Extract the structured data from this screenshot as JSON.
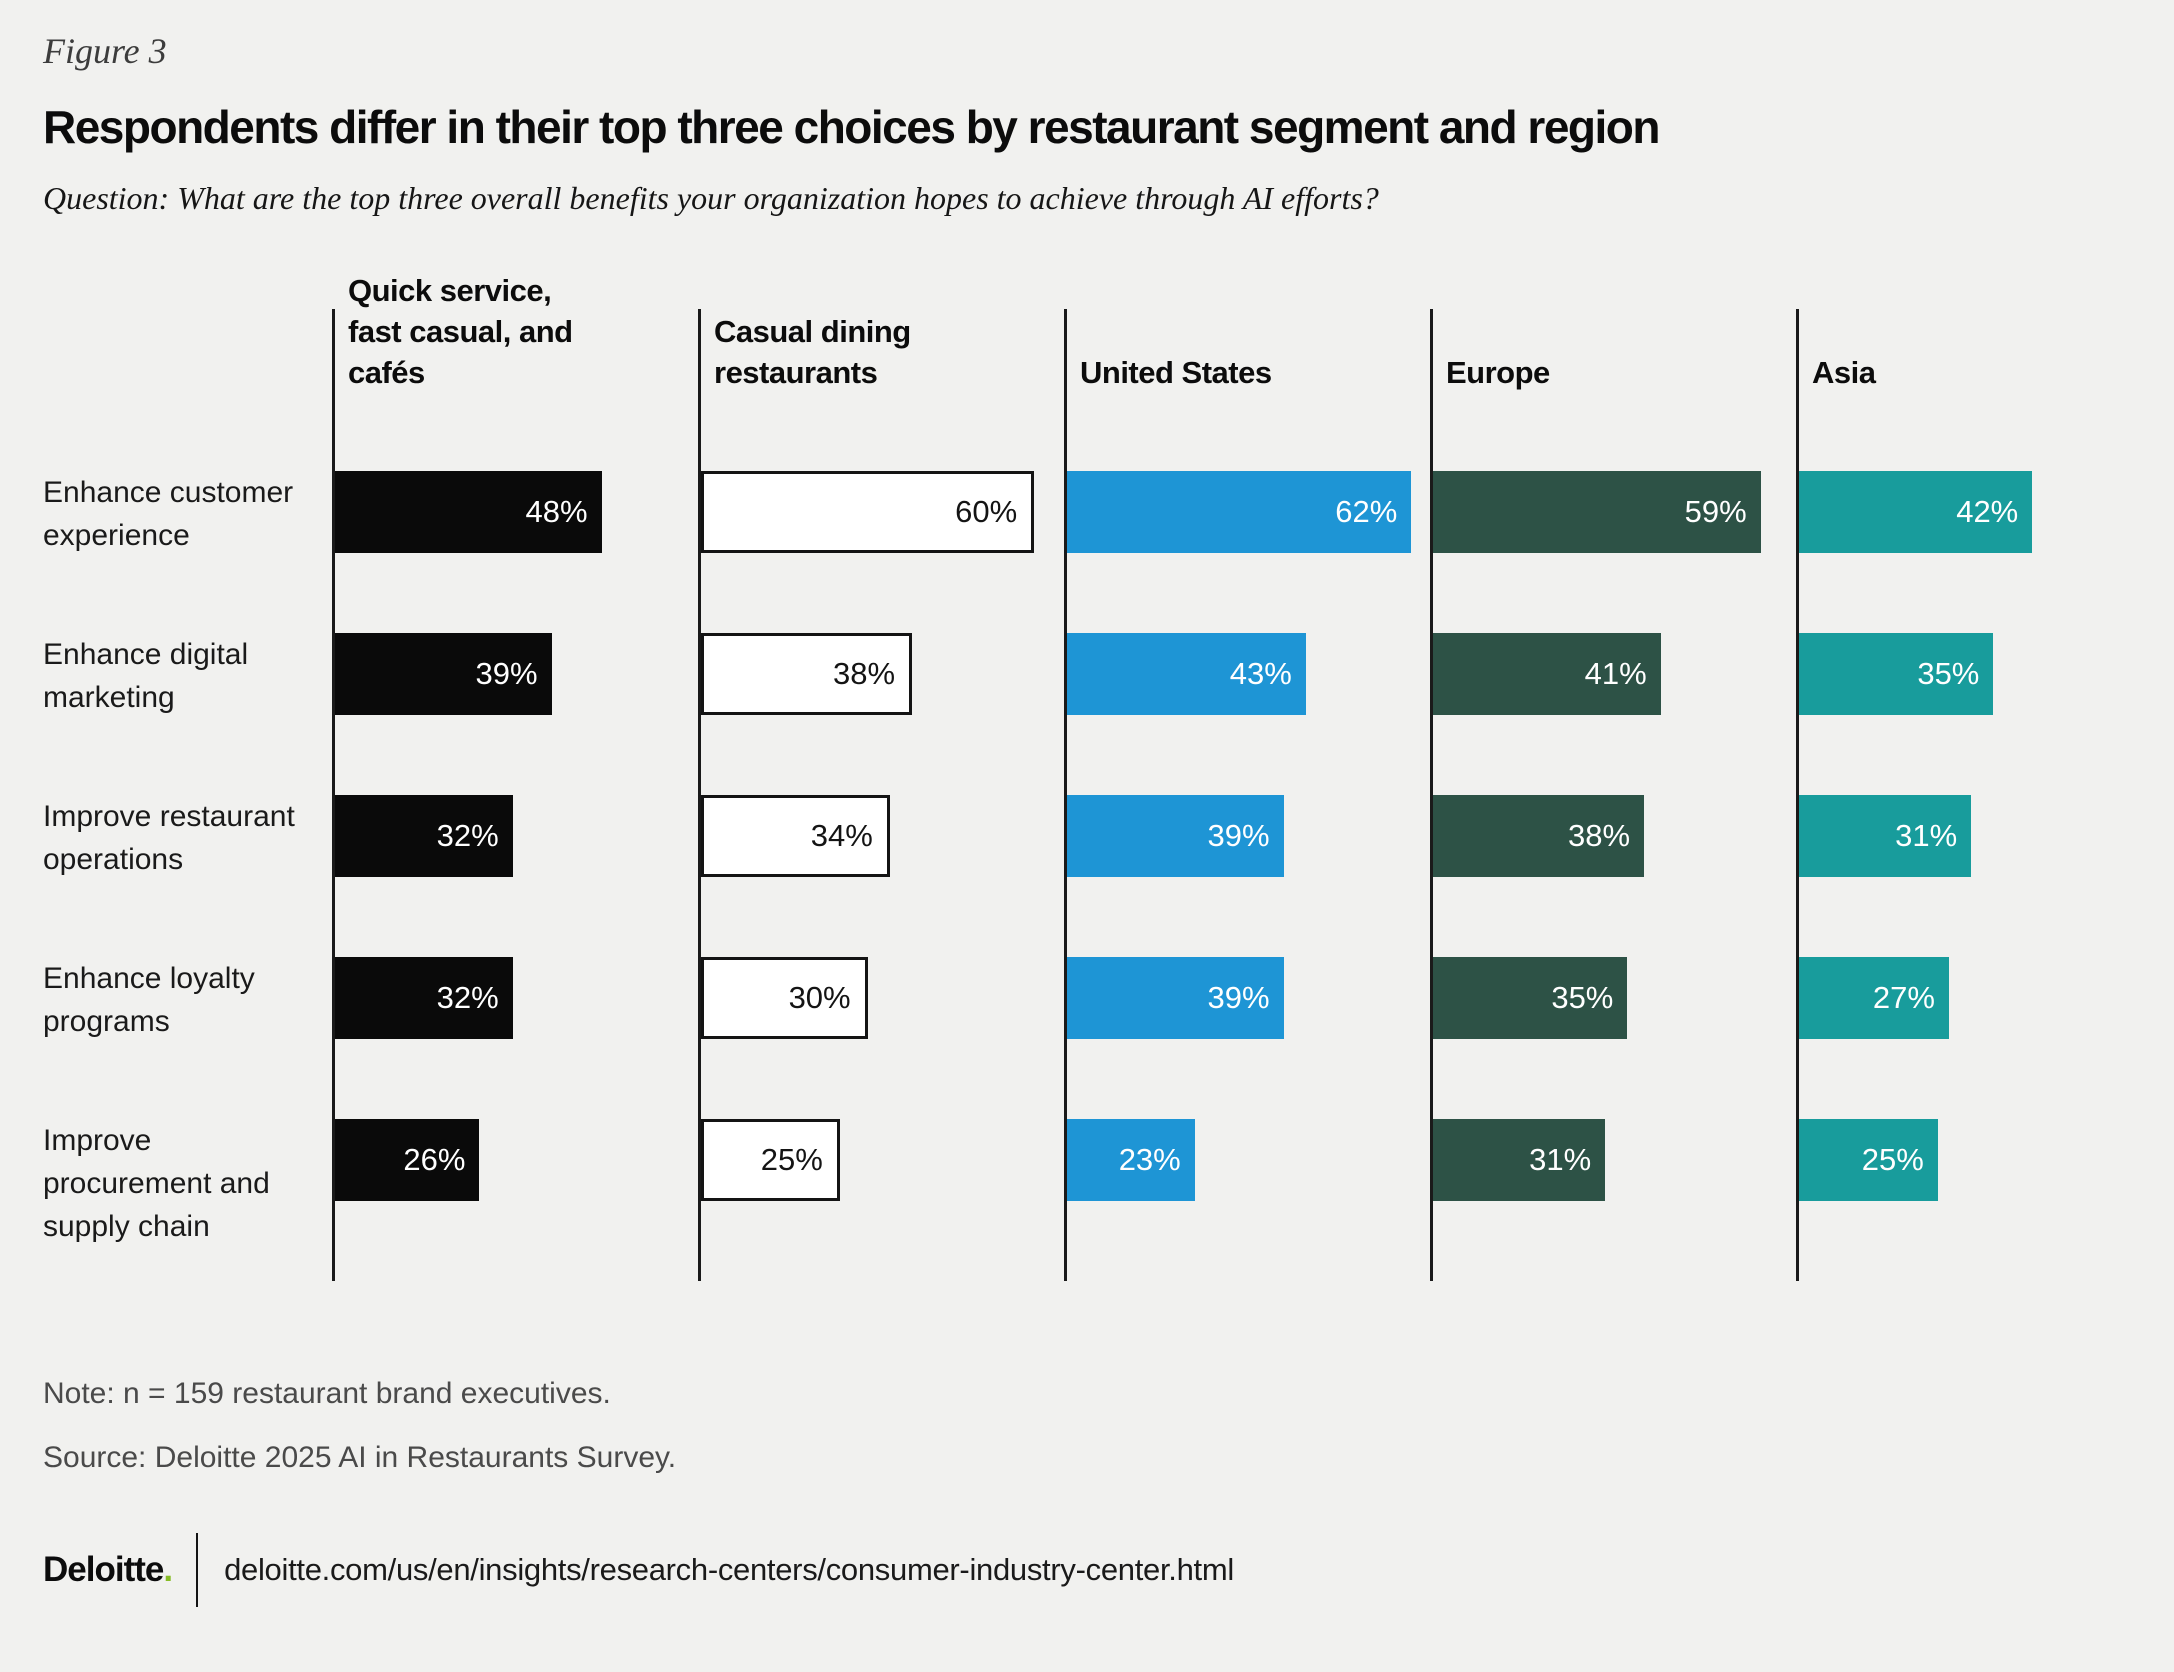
{
  "figure": {
    "label": "Figure 3",
    "title": "Respondents differ in their top three choices by restaurant segment and region",
    "question": "Question: What are the top three overall benefits your organization hopes to achieve through AI efforts?"
  },
  "chart_data": {
    "type": "bar",
    "orientation": "horizontal",
    "title": "Respondents differ in their top three choices by restaurant segment and region",
    "categories": [
      "Enhance customer experience",
      "Enhance digital marketing",
      "Improve restaurant operations",
      "Enhance loyalty programs",
      "Improve procurement and supply chain"
    ],
    "series": [
      {
        "name": "Quick service, fast casual, and cafés",
        "values": [
          48,
          39,
          32,
          32,
          26
        ],
        "bar_color": "#0a0a0a",
        "label_color": "#ffffff",
        "border": false
      },
      {
        "name": "Casual dining restaurants",
        "values": [
          60,
          38,
          34,
          30,
          25
        ],
        "bar_color": "#ffffff",
        "label_color": "#141414",
        "border": true
      },
      {
        "name": "United States",
        "values": [
          62,
          43,
          39,
          39,
          23
        ],
        "bar_color": "#1e95d5",
        "label_color": "#ffffff",
        "border": false
      },
      {
        "name": "Europe",
        "values": [
          59,
          41,
          38,
          35,
          31
        ],
        "bar_color": "#2d5246",
        "label_color": "#ffffff",
        "border": false
      },
      {
        "name": "Asia",
        "values": [
          42,
          35,
          31,
          27,
          25
        ],
        "bar_color": "#189c9c",
        "label_color": "#ffffff",
        "border": false
      }
    ],
    "value_suffix": "%",
    "xlim": [
      0,
      65
    ],
    "grid": false,
    "legend_position": "column-headers"
  },
  "note": "Note: n = 159 restaurant brand executives.",
  "source": "Source: Deloitte 2025 AI in Restaurants Survey.",
  "footer": {
    "brand": "Deloitte",
    "brand_dot": ".",
    "brand_dot_color": "#86bc25",
    "url": "deloitte.com/us/en/insights/research-centers/consumer-industry-center.html"
  }
}
